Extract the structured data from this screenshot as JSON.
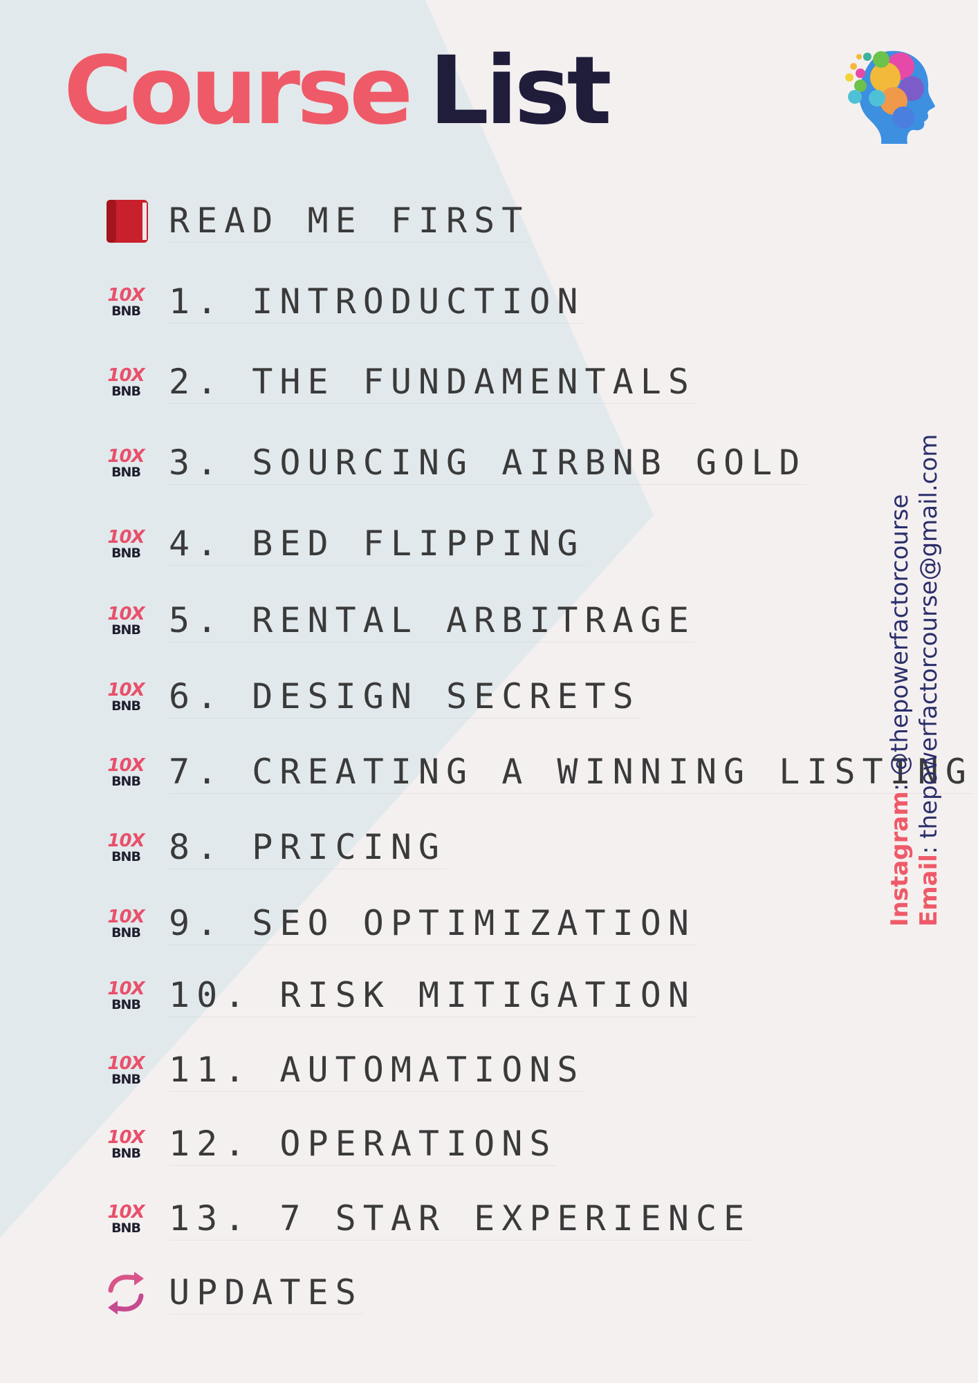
{
  "title": {
    "word1": "Course",
    "word2": "List"
  },
  "colors": {
    "accent": "#ef5a68",
    "dark": "#1f1d3a",
    "text": "#3a3a3a",
    "navy": "#2b2f6b"
  },
  "brand_badge": {
    "top": "10X",
    "bottom": "BNB"
  },
  "items": [
    {
      "label": "READ ME FIRST",
      "icon": "red-book-icon"
    },
    {
      "label": "1. INTRODUCTION",
      "icon": "10x-bnb-logo"
    },
    {
      "label": "2. THE FUNDAMENTALS",
      "icon": "10x-bnb-logo"
    },
    {
      "label": "3. SOURCING AIRBNB GOLD",
      "icon": "10x-bnb-logo"
    },
    {
      "label": "4. BED FLIPPING",
      "icon": "10x-bnb-logo"
    },
    {
      "label": "5. RENTAL ARBITRAGE",
      "icon": "10x-bnb-logo"
    },
    {
      "label": "6. DESIGN SECRETS",
      "icon": "10x-bnb-logo"
    },
    {
      "label": "7. CREATING A WINNING LISTING",
      "icon": "10x-bnb-logo"
    },
    {
      "label": "8. PRICING",
      "icon": "10x-bnb-logo"
    },
    {
      "label": "9. SEO OPTIMIZATION",
      "icon": "10x-bnb-logo"
    },
    {
      "label": "10. RISK MITIGATION",
      "icon": "10x-bnb-logo"
    },
    {
      "label": "11. AUTOMATIONS",
      "icon": "10x-bnb-logo"
    },
    {
      "label": "12. OPERATIONS",
      "icon": "10x-bnb-logo"
    },
    {
      "label": "13. 7 STAR EXPERIENCE",
      "icon": "10x-bnb-logo"
    },
    {
      "label": "UPDATES",
      "icon": "refresh-arrows-icon"
    }
  ],
  "contact": {
    "instagram_label": "Instagram",
    "instagram_value": "@thepowerfactorcourse",
    "email_label": "Email",
    "email_value": "thepowerfactorcourse@gmail.com"
  }
}
